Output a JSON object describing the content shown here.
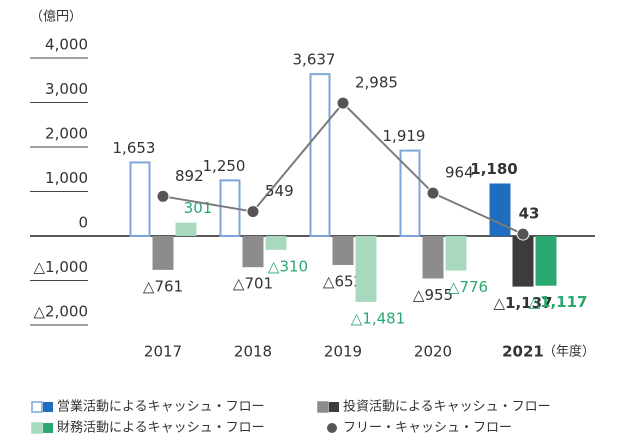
{
  "chart_data": {
    "type": "bar_line",
    "unit_label": "（億円）",
    "x_axis_unit": "（年度）",
    "categories": [
      "2017",
      "2018",
      "2019",
      "2020",
      "2021"
    ],
    "highlight_index": 4,
    "ylim": [
      -2000,
      4000
    ],
    "yticks": [
      {
        "value": 4000,
        "label": "4,000"
      },
      {
        "value": 3000,
        "label": "3,000"
      },
      {
        "value": 2000,
        "label": "2,000"
      },
      {
        "value": 1000,
        "label": "1,000"
      },
      0,
      {
        "value": -1000,
        "label": "△1,000"
      },
      {
        "value": -2000,
        "label": "△2,000"
      }
    ],
    "series": [
      {
        "name": "営業活動によるキャッシュ・フロー",
        "kind": "bar",
        "color": "#7fa6d9",
        "fill": "#ffffff",
        "highlight_color": "#1f6dbf",
        "label_color": "#333333",
        "values": [
          1653,
          1250,
          3637,
          1919,
          1180
        ],
        "value_labels": [
          "1,653",
          "1,250",
          "3,637",
          "1,919",
          "1,180"
        ]
      },
      {
        "name": "投資活動によるキャッシュ・フロー",
        "kind": "bar",
        "color": "#8c8c8c",
        "fill": "#8c8c8c",
        "highlight_color": "#3c3c3c",
        "label_color": "#333333",
        "values": [
          -761,
          -701,
          -652,
          -955,
          -1137
        ],
        "value_labels": [
          "△761",
          "△701",
          "△652",
          "△955",
          "△1,137"
        ]
      },
      {
        "name": "財務活動によるキャッシュ・フロー",
        "kind": "bar",
        "color": "#a8d8bd",
        "fill": "#a8d8bd",
        "highlight_color": "#2aa870",
        "label_color": "#2aa870",
        "values": [
          301,
          -310,
          -1481,
          -776,
          -1117
        ],
        "value_labels": [
          "301",
          "△310",
          "△1,481",
          "△776",
          "△1,117"
        ]
      },
      {
        "name": "フリー・キャッシュ・フロー",
        "kind": "line",
        "color": "#7a7a7a",
        "fill": "#555555",
        "highlight_color": "#555555",
        "label_color": "#333333",
        "values": [
          892,
          549,
          2985,
          964,
          43
        ],
        "value_labels": [
          "892",
          "549",
          "2,985",
          "964",
          "43"
        ]
      }
    ]
  }
}
